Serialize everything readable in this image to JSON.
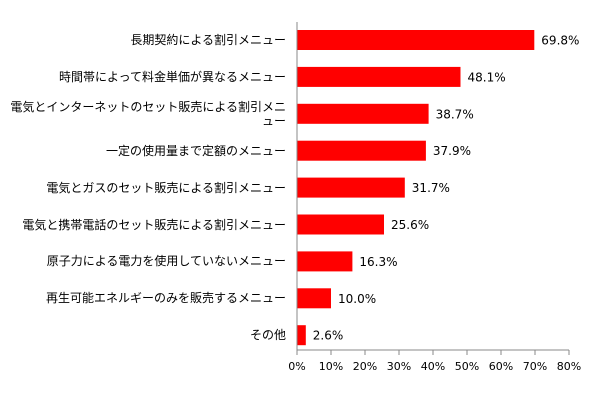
{
  "chart_data": {
    "type": "bar",
    "orientation": "horizontal",
    "categories": [
      "長期契約による割引メニュー",
      "時間帯によって料金単価が異なるメニュー",
      "電気とインターネットのセット販売による割引メニュー",
      "一定の使用量まで定額のメニュー",
      "電気とガスのセット販売による割引メニュー",
      "電気と携帯電話のセット販売による割引メニュー",
      "原子力による電力を使用していないメニュー",
      "再生可能エネルギーのみを販売するメニュー",
      "その他"
    ],
    "values": [
      69.8,
      48.1,
      38.7,
      37.9,
      31.7,
      25.6,
      16.3,
      10.0,
      2.6
    ],
    "data_labels": [
      "69.8%",
      "48.1%",
      "38.7%",
      "37.9%",
      "31.7%",
      "25.6%",
      "16.3%",
      "10.0%",
      "2.6%"
    ],
    "x_ticks": [
      "0%",
      "10%",
      "20%",
      "30%",
      "40%",
      "50%",
      "60%",
      "70%",
      "80%"
    ],
    "xlim": [
      0,
      80
    ],
    "grid": false,
    "legend": "none",
    "bar_color": "#ff0000",
    "axis_color": "#888888"
  }
}
